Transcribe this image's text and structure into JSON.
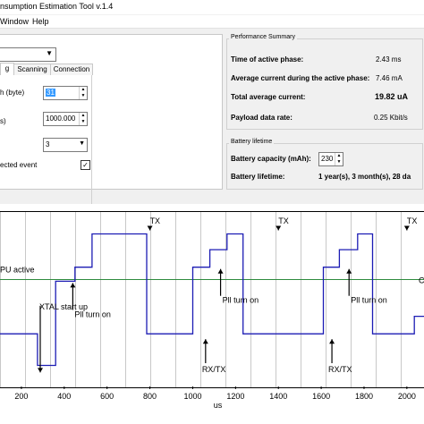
{
  "window": {
    "title": "nsumption Estimation Tool v.1.4"
  },
  "menu": {
    "items": [
      "Window",
      "Help"
    ]
  },
  "left": {
    "tabs": [
      "g",
      "Scanning",
      "Connection"
    ],
    "rows": [
      {
        "label": "h (byte)",
        "value": "31"
      },
      {
        "label": "s)",
        "value": "1000.000"
      },
      {
        "label": "",
        "value": "3"
      },
      {
        "label": "ected event",
        "checked": "✓"
      }
    ]
  },
  "performance": {
    "title": "Performance Summary",
    "active_time_label": "Time of active phase:",
    "active_time_value": "2.43 ms",
    "avg_active_label": "Average current during the active phase:",
    "avg_active_value": "7.46 mA",
    "total_avg_label": "Total average current:",
    "total_avg_value": "19.82 uA",
    "payload_label": "Payload data rate:",
    "payload_value": "0.25 Kbit/s"
  },
  "battery": {
    "title": "Battery lifetime",
    "capacity_label": "Battery capacity (mAh):",
    "capacity_value": "230",
    "lifetime_label": "Battery lifetime:",
    "lifetime_value": "1 year(s), 3 month(s), 28 da"
  },
  "chart_data": {
    "type": "line",
    "xlabel": "us",
    "x_ticks": [
      200,
      400,
      600,
      800,
      1000,
      1200,
      1400,
      1600,
      1800,
      2000
    ],
    "x_tick_labels": [
      "200",
      "400",
      "600",
      "800",
      "1000",
      "1200",
      "1400",
      "1600",
      "1800",
      "2000"
    ],
    "x_range": [
      100,
      2080
    ],
    "levels_label_unit": "relative",
    "series": [
      {
        "x": [
          100,
          275,
          275,
          360,
          360,
          450,
          450,
          530,
          530,
          785,
          785,
          1000,
          1000,
          1080,
          1080,
          1160,
          1160,
          1235,
          1235,
          1610,
          1610,
          1685,
          1685,
          1770,
          1770,
          1840,
          1840,
          2035,
          2035,
          2080
        ],
        "y": [
          0.3,
          0.3,
          0.12,
          0.12,
          0.6,
          0.6,
          0.68,
          0.68,
          0.87,
          0.87,
          0.3,
          0.3,
          0.68,
          0.68,
          0.78,
          0.78,
          0.87,
          0.87,
          0.3,
          0.3,
          0.68,
          0.68,
          0.78,
          0.78,
          0.87,
          0.87,
          0.3,
          0.3,
          0.4,
          0.4
        ]
      }
    ],
    "reference_line": {
      "label": "PU active",
      "y": 0.61
    },
    "annotations": [
      {
        "text": "TX",
        "x": 800,
        "y": 0.87
      },
      {
        "text": "TX",
        "x": 1400,
        "y": 0.87
      },
      {
        "text": "TX",
        "x": 2000,
        "y": 0.87
      },
      {
        "text": "XTAL start up",
        "x": 320,
        "y": 0.12
      },
      {
        "text": "Pll turn on",
        "x": 440,
        "y": 0.6
      },
      {
        "text": "Pll turn on",
        "x": 1130,
        "y": 0.68
      },
      {
        "text": "Pll turn on",
        "x": 1730,
        "y": 0.68
      },
      {
        "text": "RX/TX",
        "x": 1060,
        "y": 0.3
      },
      {
        "text": "RX/TX",
        "x": 1650,
        "y": 0.3
      },
      {
        "text": "C",
        "x": 2070,
        "y": 0.61
      }
    ]
  }
}
